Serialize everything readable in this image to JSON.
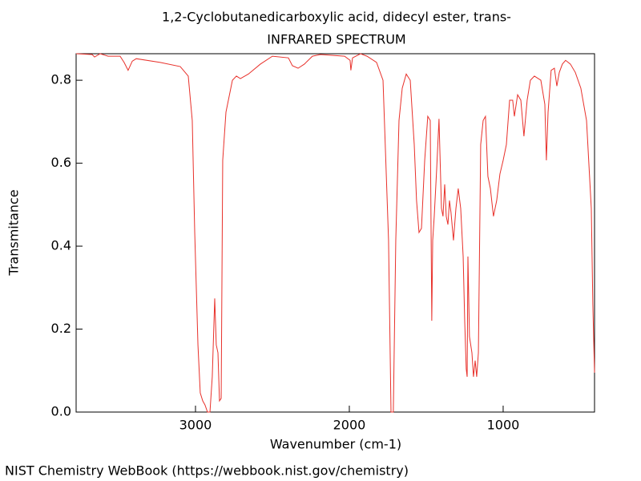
{
  "chart_data": {
    "type": "line",
    "title": "1,2-Cyclobutanedicarboxylic acid, didecyl ester, trans-",
    "subtitle": "INFRARED SPECTRUM",
    "x_label": "Wavenumber (cm-1)",
    "y_label": "Transmitance",
    "footer": "NIST Chemistry WebBook (https://webbook.nist.gov/chemistry)",
    "xlim": [
      3776,
      406
    ],
    "ylim": [
      0,
      0.864
    ],
    "xticks": [
      3000,
      2000,
      1000
    ],
    "yticks": [
      {
        "value": 0,
        "label": "0.0"
      },
      0.2,
      0.4,
      0.6,
      0.8
    ],
    "grid": false,
    "series": [
      {
        "color": "#e8302a",
        "x": [
          3776,
          3672,
          3656,
          3620,
          3568,
          3490,
          3464,
          3438,
          3411,
          3385,
          3229,
          3099,
          3047,
          3021,
          3005,
          2984,
          2969,
          2953,
          2938,
          2922,
          2906,
          2891,
          2875,
          2865,
          2854,
          2844,
          2833,
          2823,
          2802,
          2760,
          2734,
          2708,
          2656,
          2578,
          2500,
          2396,
          2370,
          2333,
          2292,
          2240,
          2188,
          2031,
          1995,
          1990,
          1979,
          1927,
          1885,
          1823,
          1781,
          1745,
          1729,
          1714,
          1698,
          1677,
          1656,
          1630,
          1604,
          1578,
          1563,
          1547,
          1531,
          1510,
          1490,
          1474,
          1464,
          1458,
          1448,
          1432,
          1417,
          1401,
          1391,
          1380,
          1370,
          1359,
          1349,
          1339,
          1323,
          1307,
          1292,
          1276,
          1260,
          1250,
          1240,
          1234,
          1229,
          1219,
          1203,
          1193,
          1182,
          1172,
          1161,
          1146,
          1130,
          1115,
          1099,
          1083,
          1063,
          1042,
          1021,
          1000,
          979,
          958,
          938,
          927,
          906,
          885,
          865,
          844,
          823,
          797,
          755,
          729,
          719,
          708,
          688,
          667,
          651,
          635,
          615,
          594,
          563,
          531,
          495,
          458,
          427,
          417,
          406
        ],
        "values": [
          0.864,
          0.862,
          0.856,
          0.864,
          0.858,
          0.858,
          0.843,
          0.824,
          0.846,
          0.852,
          0.843,
          0.833,
          0.81,
          0.703,
          0.433,
          0.162,
          0.046,
          0.027,
          0.017,
          0,
          0,
          0.085,
          0.274,
          0.162,
          0.143,
          0.027,
          0.033,
          0.607,
          0.723,
          0.8,
          0.81,
          0.804,
          0.815,
          0.839,
          0.858,
          0.854,
          0.835,
          0.829,
          0.839,
          0.858,
          0.862,
          0.858,
          0.848,
          0.824,
          0.854,
          0.864,
          0.858,
          0.843,
          0.8,
          0.414,
          0,
          0,
          0.414,
          0.703,
          0.781,
          0.815,
          0.8,
          0.645,
          0.51,
          0.433,
          0.443,
          0.607,
          0.713,
          0.703,
          0.22,
          0.414,
          0.472,
          0.587,
          0.707,
          0.491,
          0.472,
          0.549,
          0.472,
          0.452,
          0.51,
          0.481,
          0.414,
          0.491,
          0.539,
          0.491,
          0.375,
          0.22,
          0.104,
          0.085,
          0.375,
          0.182,
          0.143,
          0.085,
          0.124,
          0.085,
          0.143,
          0.645,
          0.703,
          0.713,
          0.568,
          0.539,
          0.472,
          0.51,
          0.574,
          0.607,
          0.645,
          0.752,
          0.752,
          0.713,
          0.765,
          0.752,
          0.665,
          0.752,
          0.8,
          0.81,
          0.8,
          0.742,
          0.607,
          0.723,
          0.824,
          0.829,
          0.786,
          0.819,
          0.839,
          0.848,
          0.839,
          0.819,
          0.781,
          0.703,
          0.491,
          0.259,
          0.095
        ]
      }
    ]
  }
}
